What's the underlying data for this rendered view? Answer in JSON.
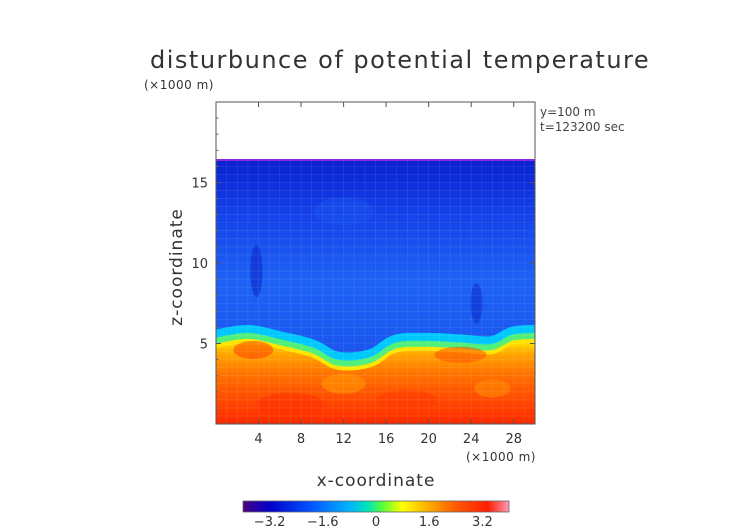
{
  "chart_data": {
    "type": "heatmap",
    "title": "disturbunce of potential temperature",
    "xlabel": "x-coordinate",
    "ylabel": "z-coordinate",
    "x_unit": "(×1000 m)",
    "z_unit": "(×1000 m)",
    "annotations": [
      "y=100 m",
      "t=123200 sec"
    ],
    "xlim": [
      0,
      30
    ],
    "ylim": [
      0,
      20
    ],
    "x_ticks": [
      "4",
      "8",
      "12",
      "16",
      "20",
      "24",
      "28"
    ],
    "y_ticks": [
      "5",
      "10",
      "15"
    ],
    "colorbar": {
      "range": [
        -4,
        4
      ],
      "tick_labels": [
        "−3.2",
        "−1.6",
        "0",
        "1.6",
        "3.2"
      ],
      "colors": [
        "#4b0082",
        "#0000c8",
        "#0050ff",
        "#00b4ff",
        "#00e6b4",
        "#64ff32",
        "#ffff00",
        "#ffaa00",
        "#ff5a00",
        "#ff1e00",
        "#ff9ab4"
      ]
    },
    "data_top_z": 16.4,
    "inversion_layer_z": [
      {
        "x": 0,
        "z": 5.3
      },
      {
        "x": 3,
        "z": 5.6
      },
      {
        "x": 6,
        "z": 5.2
      },
      {
        "x": 9,
        "z": 4.7
      },
      {
        "x": 11,
        "z": 4.0
      },
      {
        "x": 13,
        "z": 3.9
      },
      {
        "x": 15,
        "z": 4.2
      },
      {
        "x": 17,
        "z": 5.0
      },
      {
        "x": 20,
        "z": 5.1
      },
      {
        "x": 23,
        "z": 5.0
      },
      {
        "x": 26,
        "z": 4.9
      },
      {
        "x": 28,
        "z": 5.5
      },
      {
        "x": 30,
        "z": 5.6
      }
    ],
    "upper_layer_value": -2.8,
    "lower_layer_value": 2.6
  }
}
